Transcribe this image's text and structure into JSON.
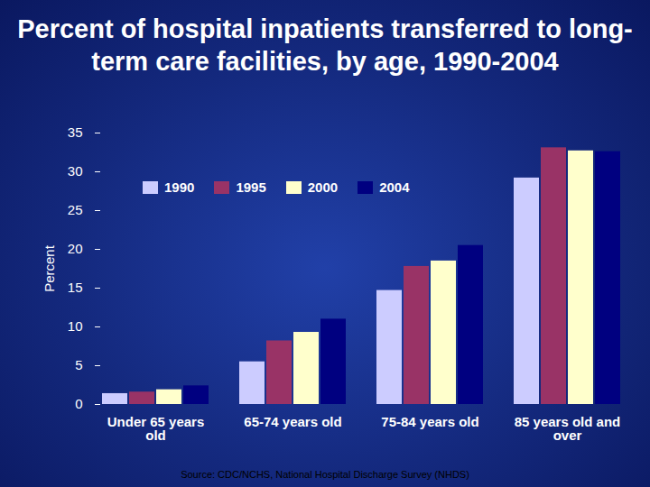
{
  "chart_data": {
    "type": "bar",
    "title": "Percent of hospital inpatients transferred to long-term care facilities, by age, 1990-2004",
    "y_label": "Percent",
    "categories": [
      "Under 65 years old",
      "65-74 years old",
      "75-84 years old",
      "85 years old and over"
    ],
    "series": [
      {
        "name": "1990",
        "color": "#ccccff",
        "values": [
          1.4,
          5.5,
          14.7,
          29.2
        ]
      },
      {
        "name": "1995",
        "color": "#993366",
        "values": [
          1.6,
          8.2,
          17.8,
          33.1
        ]
      },
      {
        "name": "2000",
        "color": "#ffffcc",
        "values": [
          1.9,
          9.3,
          18.5,
          32.7
        ]
      },
      {
        "name": "2004",
        "color": "#000080",
        "values": [
          2.4,
          11.0,
          20.5,
          32.6
        ]
      }
    ],
    "ylim": [
      0,
      35
    ],
    "yticks": [
      0,
      5,
      10,
      15,
      20,
      25,
      30,
      35
    ],
    "grid": false,
    "legend": "top-left",
    "source": "Source:  CDC/NCHS, National Hospital Discharge Survey (NHDS)"
  }
}
